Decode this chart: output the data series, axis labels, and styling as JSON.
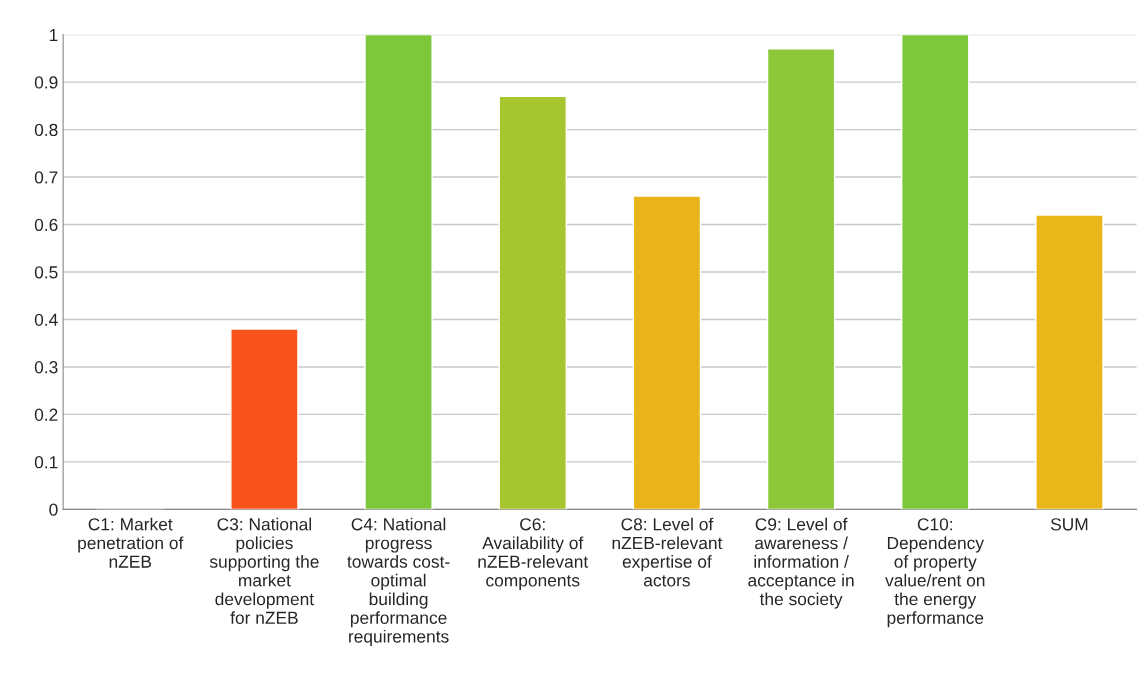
{
  "chart_data": {
    "type": "bar",
    "categories": [
      "C1: Market\npenetration of\nnZEB",
      "C3: National\npolicies\nsupporting the\nmarket\ndevelopment\nfor nZEB",
      "C4: National\nprogress\ntowards cost-\noptimal\nbuilding\nperformance\nrequirements",
      "C6:\nAvailability of\nnZEB-relevant\ncomponents",
      "C8: Level of\nnZEB-relevant\nexpertise of\nactors",
      "C9: Level of\nawareness /\ninformation /\nacceptance in\nthe society",
      "C10:\nDependency\nof property\nvalue/rent on\nthe energy\nperformance",
      "SUM"
    ],
    "values": [
      0,
      0.38,
      1,
      0.87,
      0.66,
      0.97,
      1,
      0.62
    ],
    "colors": [
      null,
      "#f8531a",
      "#7cc83a",
      "#a6c52e",
      "#e8b41a",
      "#8cc83a",
      "#7cc83a",
      "#eab71a"
    ],
    "ylim": [
      0,
      1
    ],
    "yticks": [
      0,
      0.1,
      0.2,
      0.3,
      0.4,
      0.5,
      0.6,
      0.7,
      0.8,
      0.9,
      1
    ],
    "grid": "y"
  }
}
